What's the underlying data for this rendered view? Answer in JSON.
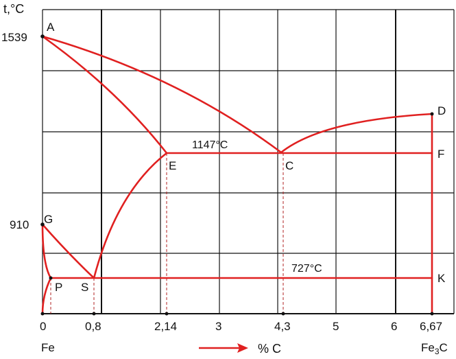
{
  "diagram": {
    "y_axis_label": "t,°C",
    "x_axis_label": "% C",
    "left_end_label": "Fe",
    "right_end_label_main": "Fe",
    "right_end_label_sub": "3",
    "right_end_label_tail": "C",
    "y_ticks": [
      "1539",
      "910"
    ],
    "x_ticks": [
      "0",
      "0,8",
      "2,14",
      "3",
      "4,3",
      "5",
      "6",
      "6,67"
    ],
    "points": {
      "A": "A",
      "D": "D",
      "E": "E",
      "C": "C",
      "F": "F",
      "G": "G",
      "P": "P",
      "S": "S",
      "K": "K"
    },
    "annotations": {
      "eutectic_temp": "1147°C",
      "eutectoid_temp": "727°C"
    },
    "colors": {
      "phase_line": "#e02020",
      "grid": "#111111",
      "arrow": "#e02020"
    }
  }
}
